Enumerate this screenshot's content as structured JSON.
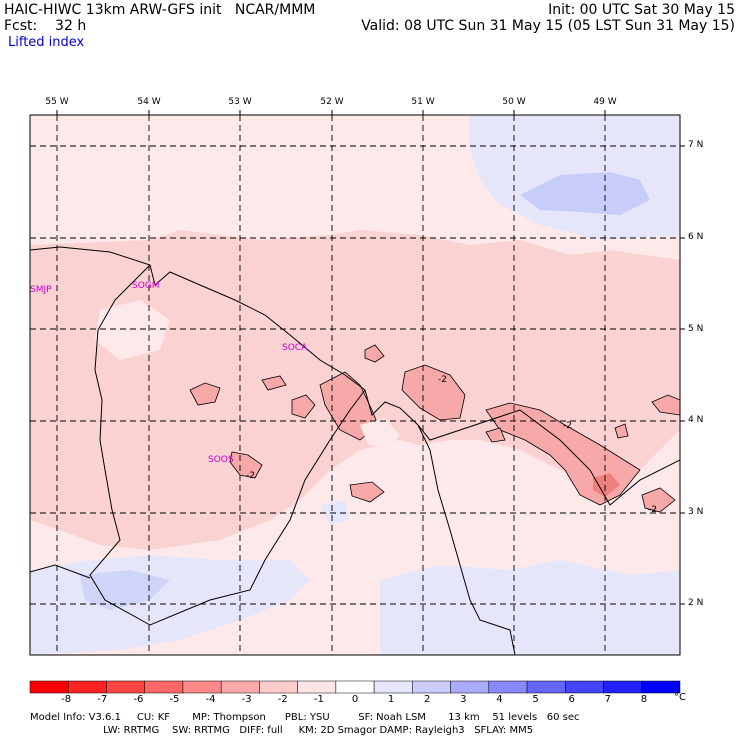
{
  "header": {
    "title": "HAIC-HIWC 13km ARW-GFS init   NCAR/MMM",
    "init": "Init: 00 UTC Sat 30 May 15",
    "fcst": "Fcst:    32 h",
    "valid": "Valid: 08 UTC Sun 31 May 15 (05 LST Sun 31 May 15)",
    "field": "Lifted index"
  },
  "map": {
    "longitude_labels": [
      "55 W",
      "54 W",
      "53 W",
      "52 W",
      "51 W",
      "50 W",
      "49 W"
    ],
    "latitude_labels": [
      "7 N",
      "6 N",
      "5 N",
      "4 N",
      "3 N",
      "2 N"
    ],
    "stations": [
      "SMJP",
      "SOGM",
      "SOCA",
      "SOOS"
    ],
    "contour_labels": [
      "-2",
      "-2",
      "-2",
      "-2"
    ],
    "colors": {
      "background": "#fde9e9",
      "light_red": "#fbd2d2",
      "mid_red": "#f7a8a8",
      "strong_red": "#f08080",
      "light_blue": "#d8dcfb",
      "mid_blue": "#b8bef8"
    }
  },
  "colorbar": {
    "labels": [
      "-8",
      "-7",
      "-6",
      "-5",
      "-4",
      "-3",
      "-2",
      "-1",
      "0",
      "1",
      "2",
      "3",
      "4",
      "5",
      "6",
      "7",
      "8"
    ],
    "unit": "°C",
    "colors": [
      "#ff0000",
      "#ff2222",
      "#ff4444",
      "#ff6666",
      "#ff8888",
      "#ffaaaa",
      "#ffcccc",
      "#ffe6e6",
      "#ffffff",
      "#e6e6ff",
      "#ccccff",
      "#aaaaff",
      "#8888ff",
      "#6666ff",
      "#4444ff",
      "#2222ff",
      "#0000ff"
    ]
  },
  "footer": {
    "line1": "Model Info: V3.6.1     CU: KF       MP: Thompson      PBL: YSU         SF: Noah LSM       13 km    51 levels   60 sec",
    "line2": "                       LW: RRTMG    SW: RRTMG   DIFF: full     KM: 2D Smagor DAMP: Rayleigh3   SFLAY: MM5"
  }
}
